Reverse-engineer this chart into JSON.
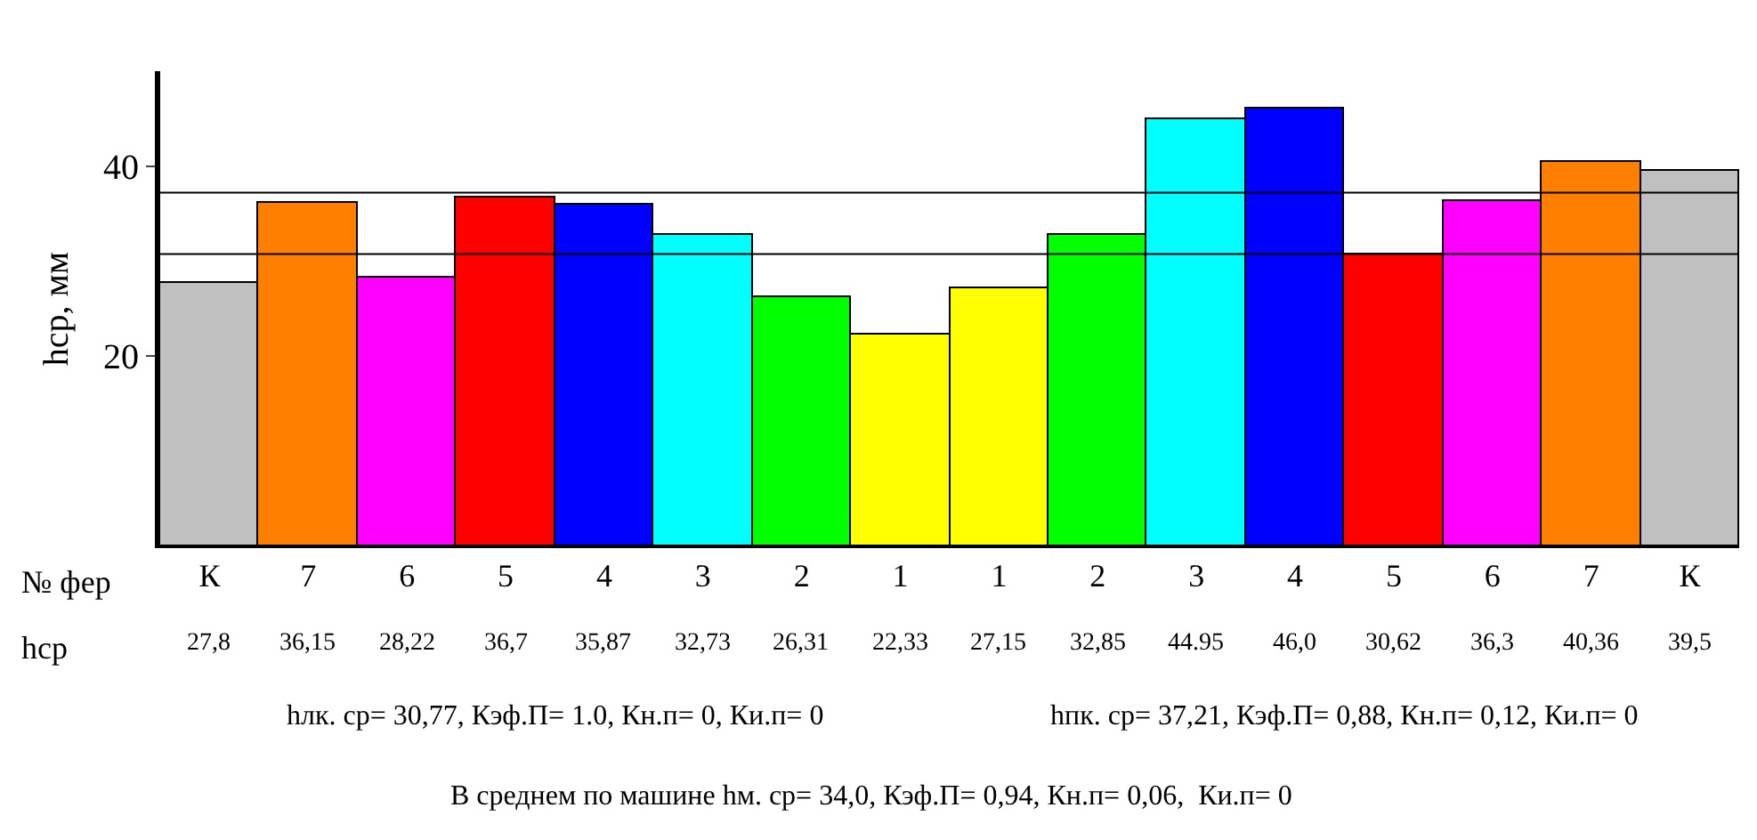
{
  "chart_data": {
    "type": "bar",
    "ylabel": "hcp, мм",
    "categories": [
      "К",
      "7",
      "6",
      "5",
      "4",
      "3",
      "2",
      "1",
      "1",
      "2",
      "3",
      "4",
      "5",
      "6",
      "7",
      "К"
    ],
    "values": [
      27.8,
      36.15,
      28.22,
      36.7,
      35.87,
      32.73,
      26.31,
      22.33,
      27.15,
      32.85,
      44.95,
      46.0,
      30.62,
      36.3,
      40.36,
      39.5
    ],
    "value_labels": [
      "27,8",
      "36,15",
      "28,22",
      "36,7",
      "35,87",
      "32,73",
      "26,31",
      "22,33",
      "27,15",
      "32,85",
      "44.95",
      "46,0",
      "30,62",
      "36,3",
      "40,36",
      "39,5"
    ],
    "colors": [
      "#c0c0c0",
      "#ff8000",
      "#ff00ff",
      "#ff0000",
      "#0000ff",
      "#00ffff",
      "#00ff00",
      "#ffff00",
      "#ffff00",
      "#00ff00",
      "#00ffff",
      "#0000ff",
      "#ff0000",
      "#ff00ff",
      "#ff8000",
      "#c0c0c0"
    ],
    "ylim": [
      0,
      50
    ],
    "yticks": [
      20,
      40
    ],
    "grid": false,
    "legend": false,
    "ref_lines": [
      {
        "axis": "y",
        "value": 30.77,
        "color": "#000000"
      },
      {
        "axis": "y",
        "value": 37.21,
        "color": "#000000"
      }
    ],
    "annotations": [
      "№ фер",
      "hcp",
      "hлк. ср= 30,77, Кэф.П= 1.0, Кн.п= 0, Ки.п= 0",
      "hпк. ср= 37,21, Кэф.П= 0,88, Кн.п= 0,12, Ки.п= 0",
      "В среднем по машине hм. ср= 34,0, Кэф.П= 0,94, Кн.п= 0,06,  Ки.п= 0"
    ]
  }
}
